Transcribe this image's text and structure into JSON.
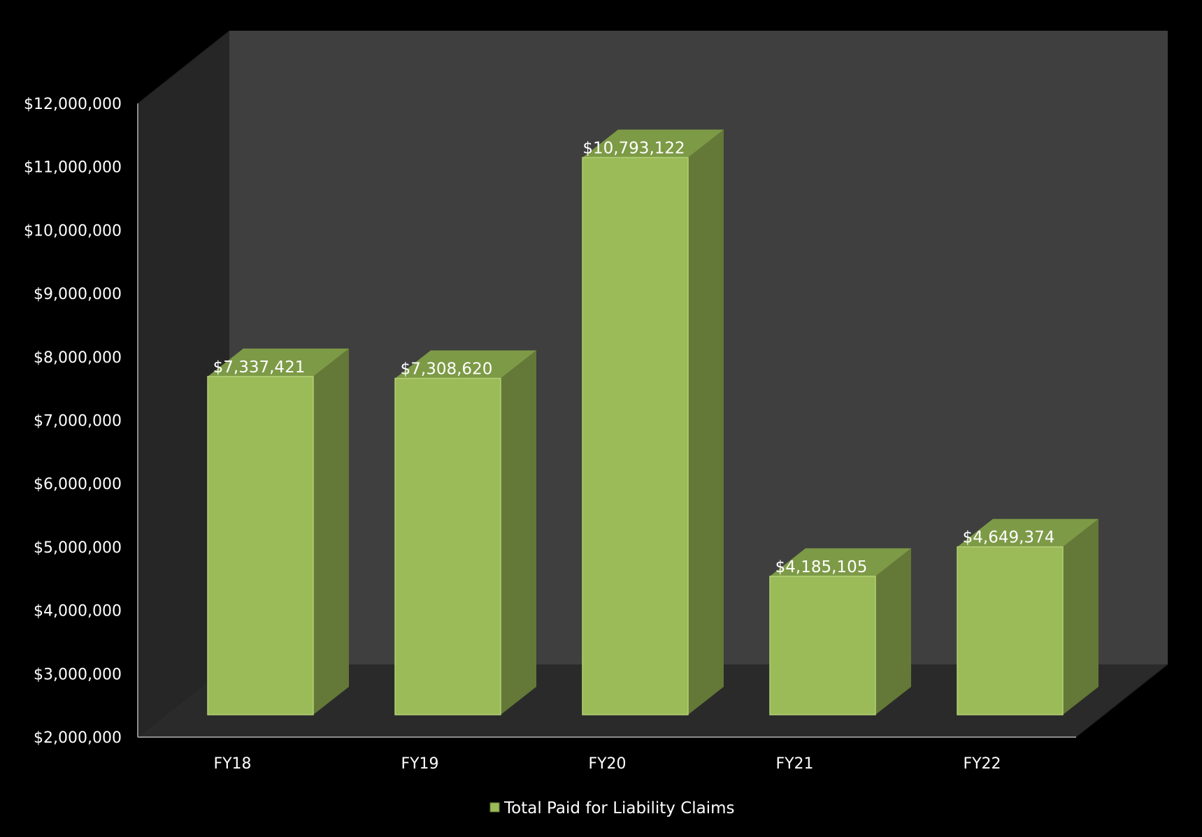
{
  "chart_data": {
    "type": "bar",
    "style": "3d-column",
    "categories": [
      "FY18",
      "FY19",
      "FY20",
      "FY21",
      "FY22"
    ],
    "series": [
      {
        "name": "Total Paid for Liability Claims",
        "values": [
          7337421,
          7308620,
          10793122,
          4185105,
          4649374
        ]
      }
    ],
    "value_labels": [
      "$7,337,421",
      "$7,308,620",
      "$10,793,122",
      "$4,185,105",
      "$4,649,374"
    ],
    "y_ticks": [
      "$2,000,000",
      "$3,000,000",
      "$4,000,000",
      "$5,000,000",
      "$6,000,000",
      "$7,000,000",
      "$8,000,000",
      "$9,000,000",
      "$10,000,000",
      "$11,000,000",
      "$12,000,000"
    ],
    "ylim": [
      2000000,
      12000000
    ],
    "y_step": 1000000,
    "title": "",
    "xlabel": "",
    "ylabel": "",
    "legend_position": "bottom",
    "grid": false,
    "colors": {
      "background": "#000000",
      "back_wall": "#3f3f3f",
      "side_wall": "#262626",
      "floor": "#2a2a2a",
      "axis": "#8c8c8c",
      "bar_front": "#9bbb59",
      "bar_side": "#647837",
      "bar_top": "#7d9a46",
      "text": "#ffffff"
    }
  }
}
